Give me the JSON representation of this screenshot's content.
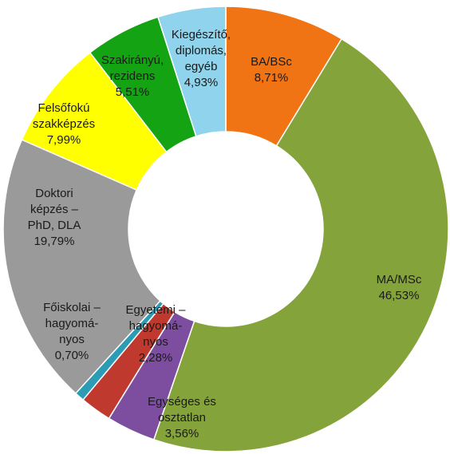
{
  "chart_data": {
    "type": "donut",
    "categories": [
      [
        "BA/BSc"
      ],
      [
        "MA/MSc"
      ],
      [
        "Egységes és",
        "osztatlan"
      ],
      [
        "Egyetemi –",
        "hagyomá-",
        "nyos"
      ],
      [
        "Főiskolai –",
        "hagyomá-",
        "nyos"
      ],
      [
        "Doktori",
        "képzés –",
        "PhD, DLA"
      ],
      [
        "Felsőfokú",
        "szakképzés"
      ],
      [
        "Szakirányú,",
        "rezidens"
      ],
      [
        "Kiegészítő,",
        "diplomás,",
        "egyéb"
      ]
    ],
    "values": [
      8.71,
      46.53,
      3.56,
      2.28,
      0.7,
      19.79,
      7.99,
      5.51,
      4.93
    ],
    "value_labels": [
      "8,71%",
      "46,53%",
      "3,56%",
      "2,28%",
      "0,70%",
      "19,79%",
      "7,99%",
      "5,51%",
      "4,93%"
    ],
    "colors": [
      "#f07314",
      "#84a33a",
      "#7d4e9f",
      "#c0392e",
      "#2b9cb3",
      "#9a9a9a",
      "#ffff00",
      "#13a313",
      "#8fd3ec"
    ]
  }
}
